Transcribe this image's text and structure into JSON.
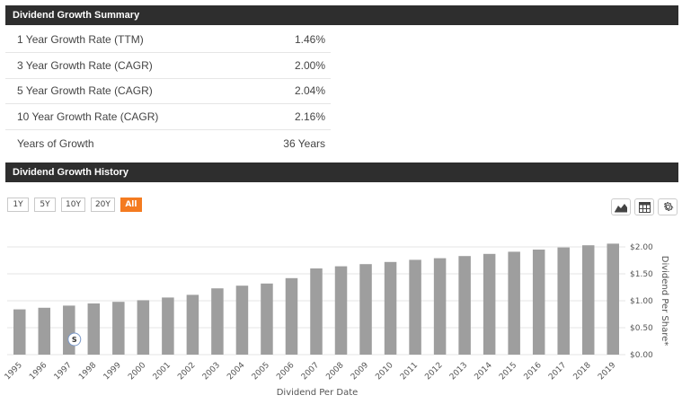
{
  "summary": {
    "title": "Dividend Growth Summary",
    "rows": [
      {
        "label": "1 Year Growth Rate (TTM)",
        "value": "1.46%"
      },
      {
        "label": "3 Year Growth Rate (CAGR)",
        "value": "2.00%"
      },
      {
        "label": "5 Year Growth Rate (CAGR)",
        "value": "2.04%"
      },
      {
        "label": "10 Year Growth Rate (CAGR)",
        "value": "2.16%"
      },
      {
        "label": "Years of Growth",
        "value": "36 Years"
      }
    ]
  },
  "history": {
    "title": "Dividend Growth History",
    "range_buttons": [
      "1Y",
      "5Y",
      "10Y",
      "20Y",
      "All"
    ],
    "active_range": "All",
    "tools": [
      "area-chart-icon",
      "table-icon",
      "gear-icon"
    ],
    "flag_label": "S"
  },
  "colors": {
    "header_bg": "#2e2e2e",
    "accent": "#f47b20",
    "bar": "#9e9e9e",
    "grid": "#e6e6e6"
  },
  "chart_data": {
    "type": "bar",
    "categories": [
      "1995",
      "1996",
      "1997",
      "1998",
      "1999",
      "2000",
      "2001",
      "2002",
      "2003",
      "2004",
      "2005",
      "2006",
      "2007",
      "2008",
      "2009",
      "2010",
      "2011",
      "2012",
      "2013",
      "2014",
      "2015",
      "2016",
      "2017",
      "2018",
      "2019"
    ],
    "values": [
      0.84,
      0.87,
      0.91,
      0.95,
      0.98,
      1.01,
      1.06,
      1.11,
      1.23,
      1.28,
      1.32,
      1.42,
      1.6,
      1.64,
      1.68,
      1.72,
      1.76,
      1.79,
      1.83,
      1.87,
      1.91,
      1.95,
      1.99,
      2.03,
      2.06
    ],
    "xlabel": "Dividend Per Date",
    "ylabel": "Dividend Per Share*",
    "ylim": [
      0,
      2.0
    ],
    "yticks": [
      "$0.00",
      "$0.50",
      "$1.00",
      "$1.50",
      "$2.00"
    ],
    "grid": true,
    "flag": {
      "category": "1997",
      "label": "S"
    }
  }
}
